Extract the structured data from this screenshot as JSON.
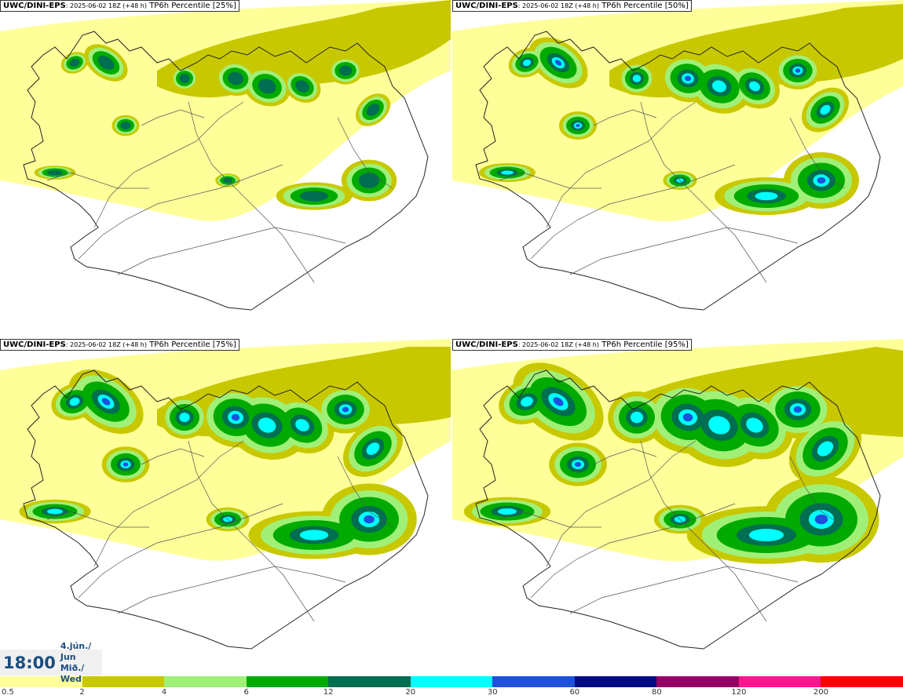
{
  "panels": [
    {
      "model": "UWC/DINI-EPS",
      "run": "2025-06-02 18Z (+48 h)",
      "field": "TP6h Percentile [25%]"
    },
    {
      "model": "UWC/DINI-EPS",
      "run": "2025-06-02 18Z (+48 h)",
      "field": "TP6h Percentile [50%]"
    },
    {
      "model": "UWC/DINI-EPS",
      "run": "2025-06-02 18Z (+48 h)",
      "field": "TP6h Percentile [75%]"
    },
    {
      "model": "UWC/DINI-EPS",
      "run": "2025-06-02 18Z (+48 h)",
      "field": "TP6h Percentile [95%]"
    }
  ],
  "valid_time": {
    "time": "18:00",
    "date_line1": "4.jún./ Jun",
    "date_line2": "Mið./ Wed"
  },
  "legend": {
    "labels": [
      "0.5",
      "2",
      "4",
      "6",
      "12",
      "20",
      "30",
      "60",
      "80",
      "120",
      "200"
    ],
    "colors": [
      "#ffff99",
      "#c8c800",
      "#a0f078",
      "#00aa00",
      "#006e50",
      "#00ffff",
      "#1e50dc",
      "#000a82",
      "#960064",
      "#ff1490",
      "#ff0000"
    ]
  }
}
